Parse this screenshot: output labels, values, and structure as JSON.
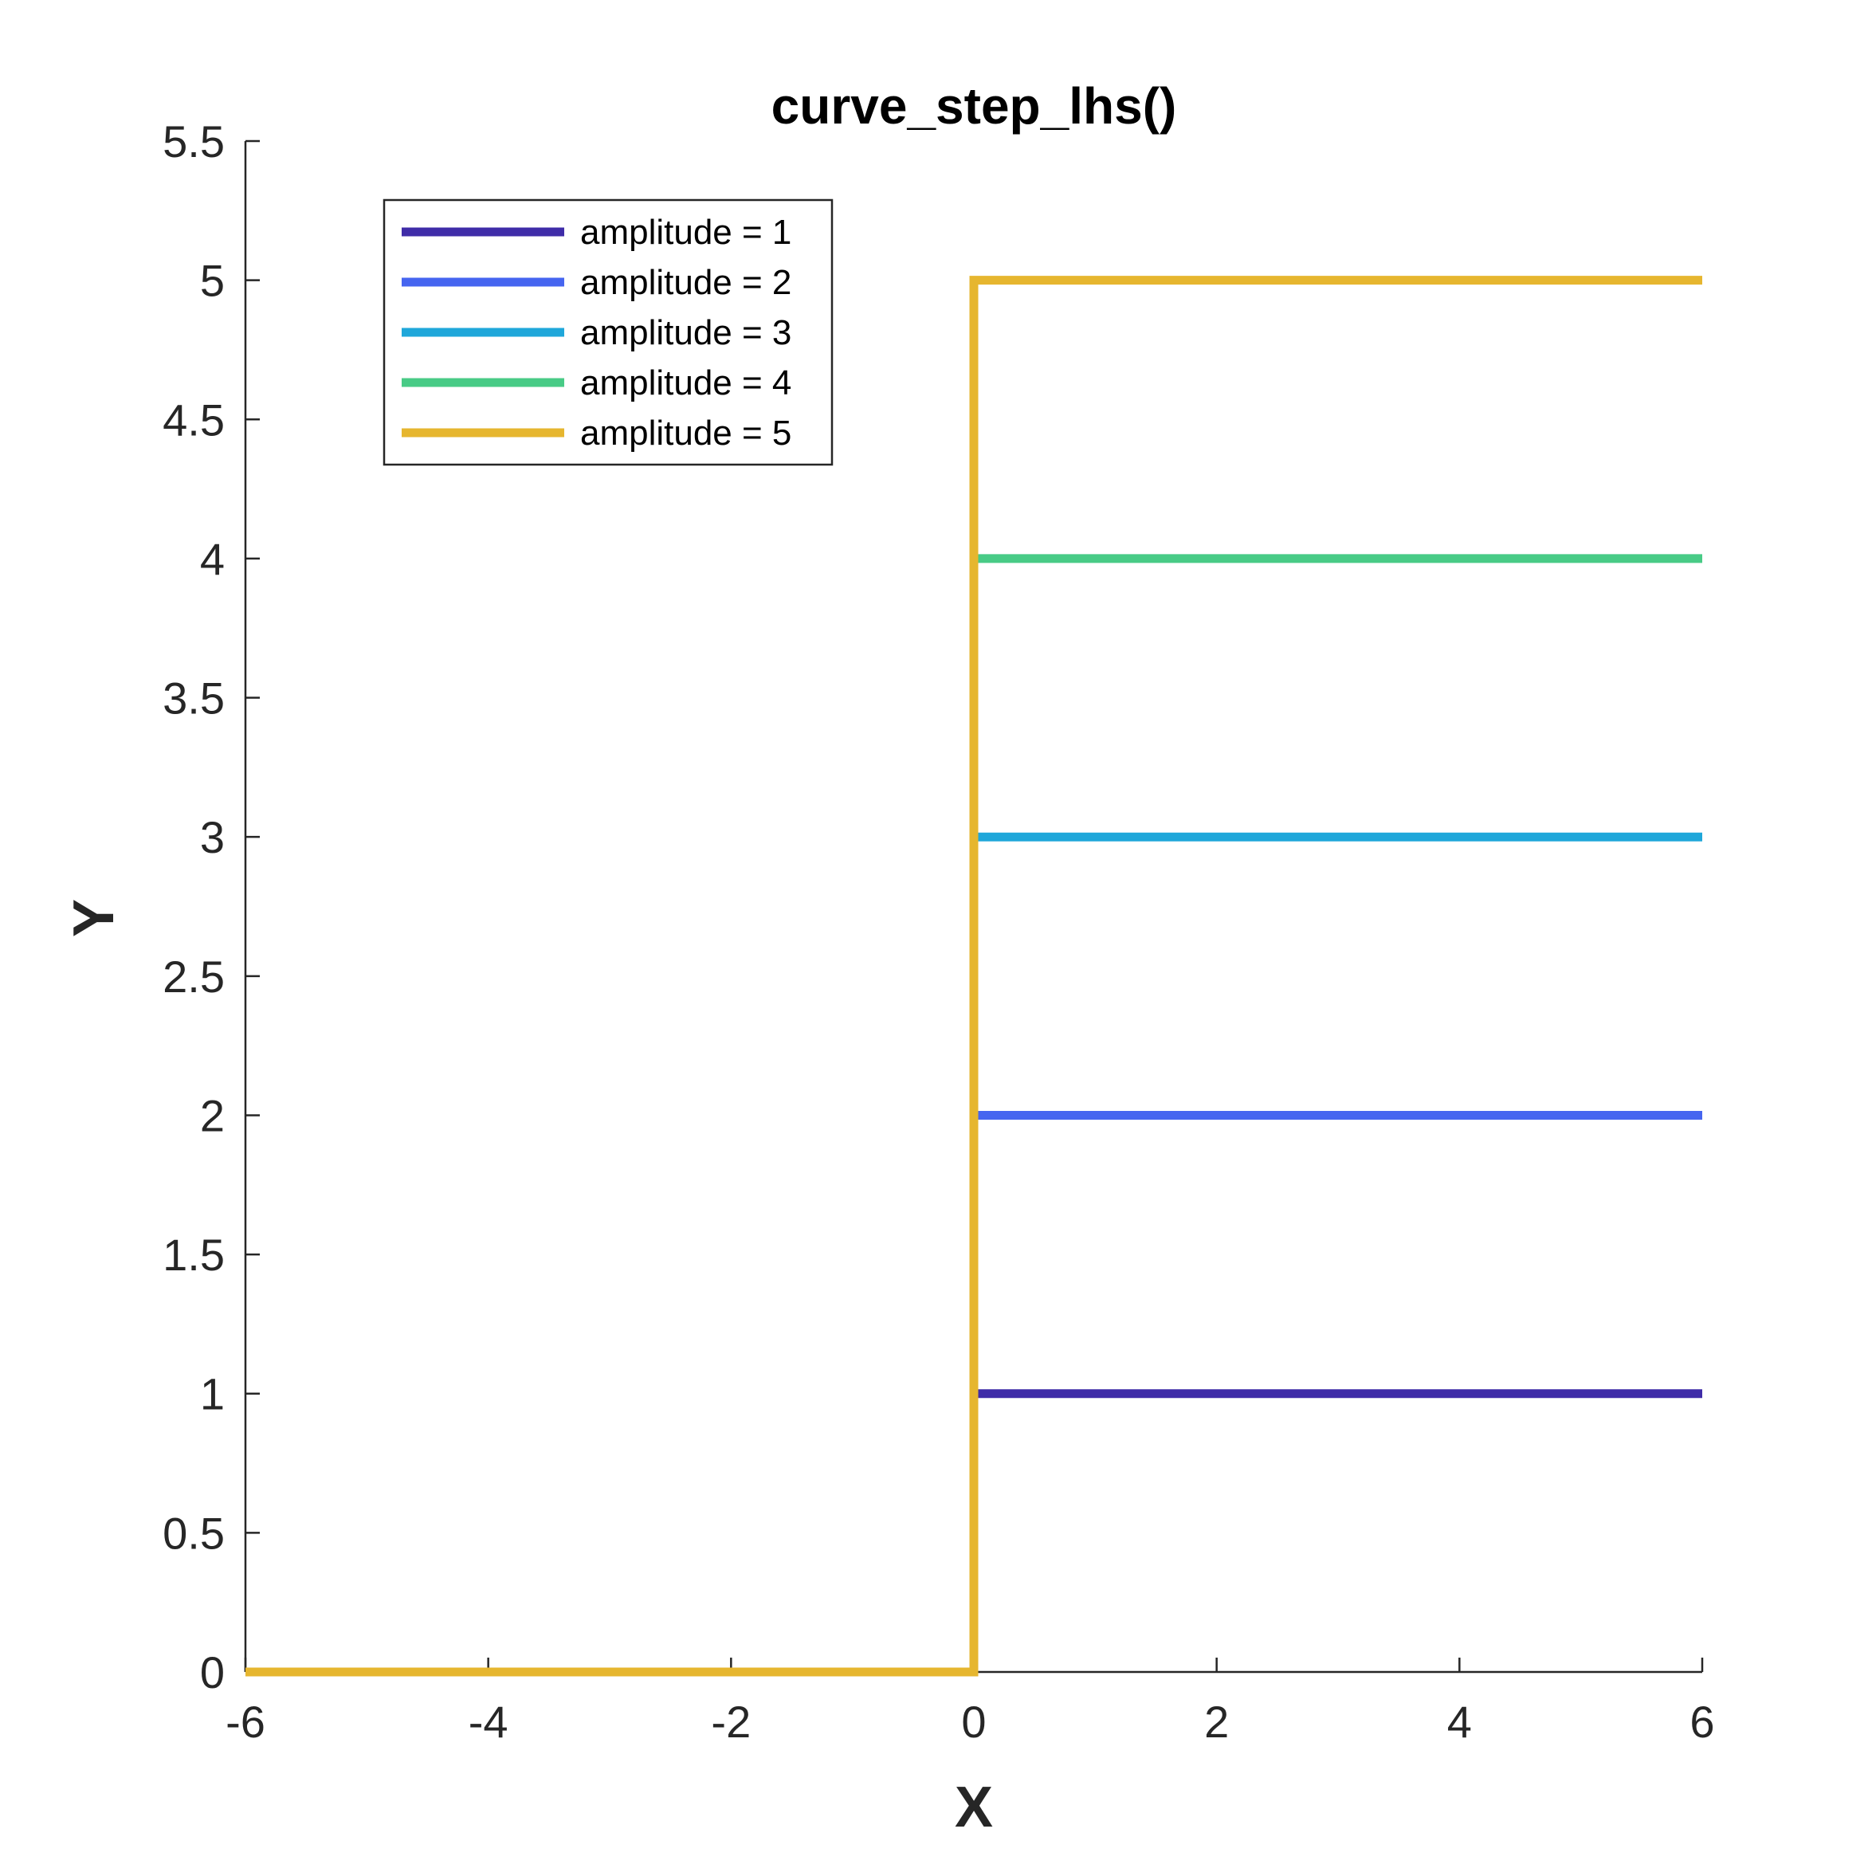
{
  "chart_data": {
    "type": "line",
    "title": "curve_step_lhs()",
    "xlabel": "X",
    "ylabel": "Y",
    "xlim": [
      -6,
      6
    ],
    "ylim": [
      0,
      5.5
    ],
    "xticks": [
      -6,
      -4,
      -2,
      0,
      2,
      4,
      6
    ],
    "xtick_labels": [
      "-6",
      "-4",
      "-2",
      "0",
      "2",
      "4",
      "6"
    ],
    "yticks": [
      0,
      0.5,
      1,
      1.5,
      2,
      2.5,
      3,
      3.5,
      4,
      4.5,
      5,
      5.5
    ],
    "ytick_labels": [
      "0",
      "0.5",
      "1",
      "1.5",
      "2",
      "2.5",
      "3",
      "3.5",
      "4",
      "4.5",
      "5",
      "5.5"
    ],
    "grid": false,
    "legend_position": "top-left",
    "series": [
      {
        "name": "amplitude = 1",
        "color": "#3f2ca8",
        "x": [
          -6,
          0,
          0,
          6
        ],
        "y": [
          0,
          0,
          1,
          1
        ]
      },
      {
        "name": "amplitude = 2",
        "color": "#4665f0",
        "x": [
          -6,
          0,
          0,
          6
        ],
        "y": [
          0,
          0,
          2,
          2
        ]
      },
      {
        "name": "amplitude = 3",
        "color": "#1fa7da",
        "x": [
          -6,
          0,
          0,
          6
        ],
        "y": [
          0,
          0,
          3,
          3
        ]
      },
      {
        "name": "amplitude = 4",
        "color": "#48cb86",
        "x": [
          -6,
          0,
          0,
          6
        ],
        "y": [
          0,
          0,
          4,
          4
        ]
      },
      {
        "name": "amplitude = 5",
        "color": "#e6b62f",
        "x": [
          -6,
          0,
          0,
          6
        ],
        "y": [
          0,
          0,
          5,
          5
        ]
      }
    ]
  }
}
